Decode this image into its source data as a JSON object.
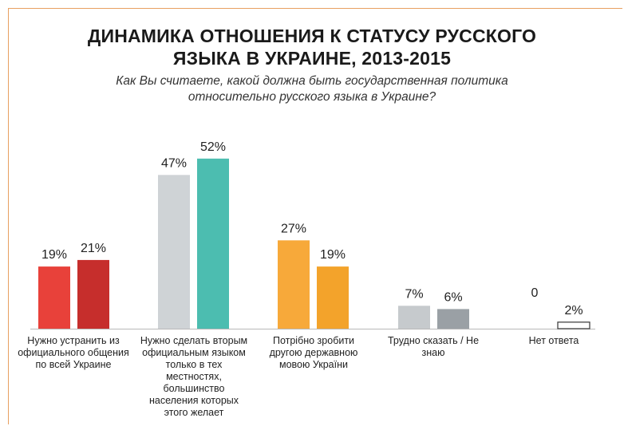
{
  "chart_data": {
    "type": "bar",
    "title": "ДИНАМИКА ОТНОШЕНИЯ К СТАТУСУ РУССКОГО",
    "title_line2": "ЯЗЫКА В УКРАИНЕ, 2013-2015",
    "subtitle": "Как Вы считаете, какой должна быть государственная политика",
    "subtitle_line2": "относительно русского языка в Украине?",
    "categories": [
      "Нужно устранить из официального общения по всей Украине",
      "Нужно сделать вторым официальным языком только в тех местностях, большинство населения которых этого желает",
      "Потрібно зробити другою державною мовою України",
      "Трудно сказать / Не знаю",
      "Нет ответа"
    ],
    "series": [
      {
        "values": [
          19,
          47,
          27,
          7,
          0
        ]
      },
      {
        "values": [
          21,
          52,
          19,
          6,
          2
        ]
      }
    ],
    "value_labels": [
      [
        "19%",
        "47%",
        "27%",
        "7%",
        "0"
      ],
      [
        "21%",
        "52%",
        "19%",
        "6%",
        "2%"
      ]
    ],
    "bar_colors": [
      [
        "#e8413a",
        "#cfd3d6",
        "#f7a93a",
        "#c6cacd",
        "#ffffff"
      ],
      [
        "#c62e2c",
        "#4cbdb0",
        "#f3a32b",
        "#9aa0a5",
        "#ffffff"
      ]
    ],
    "ylim": [
      0,
      55
    ],
    "grid": false
  }
}
